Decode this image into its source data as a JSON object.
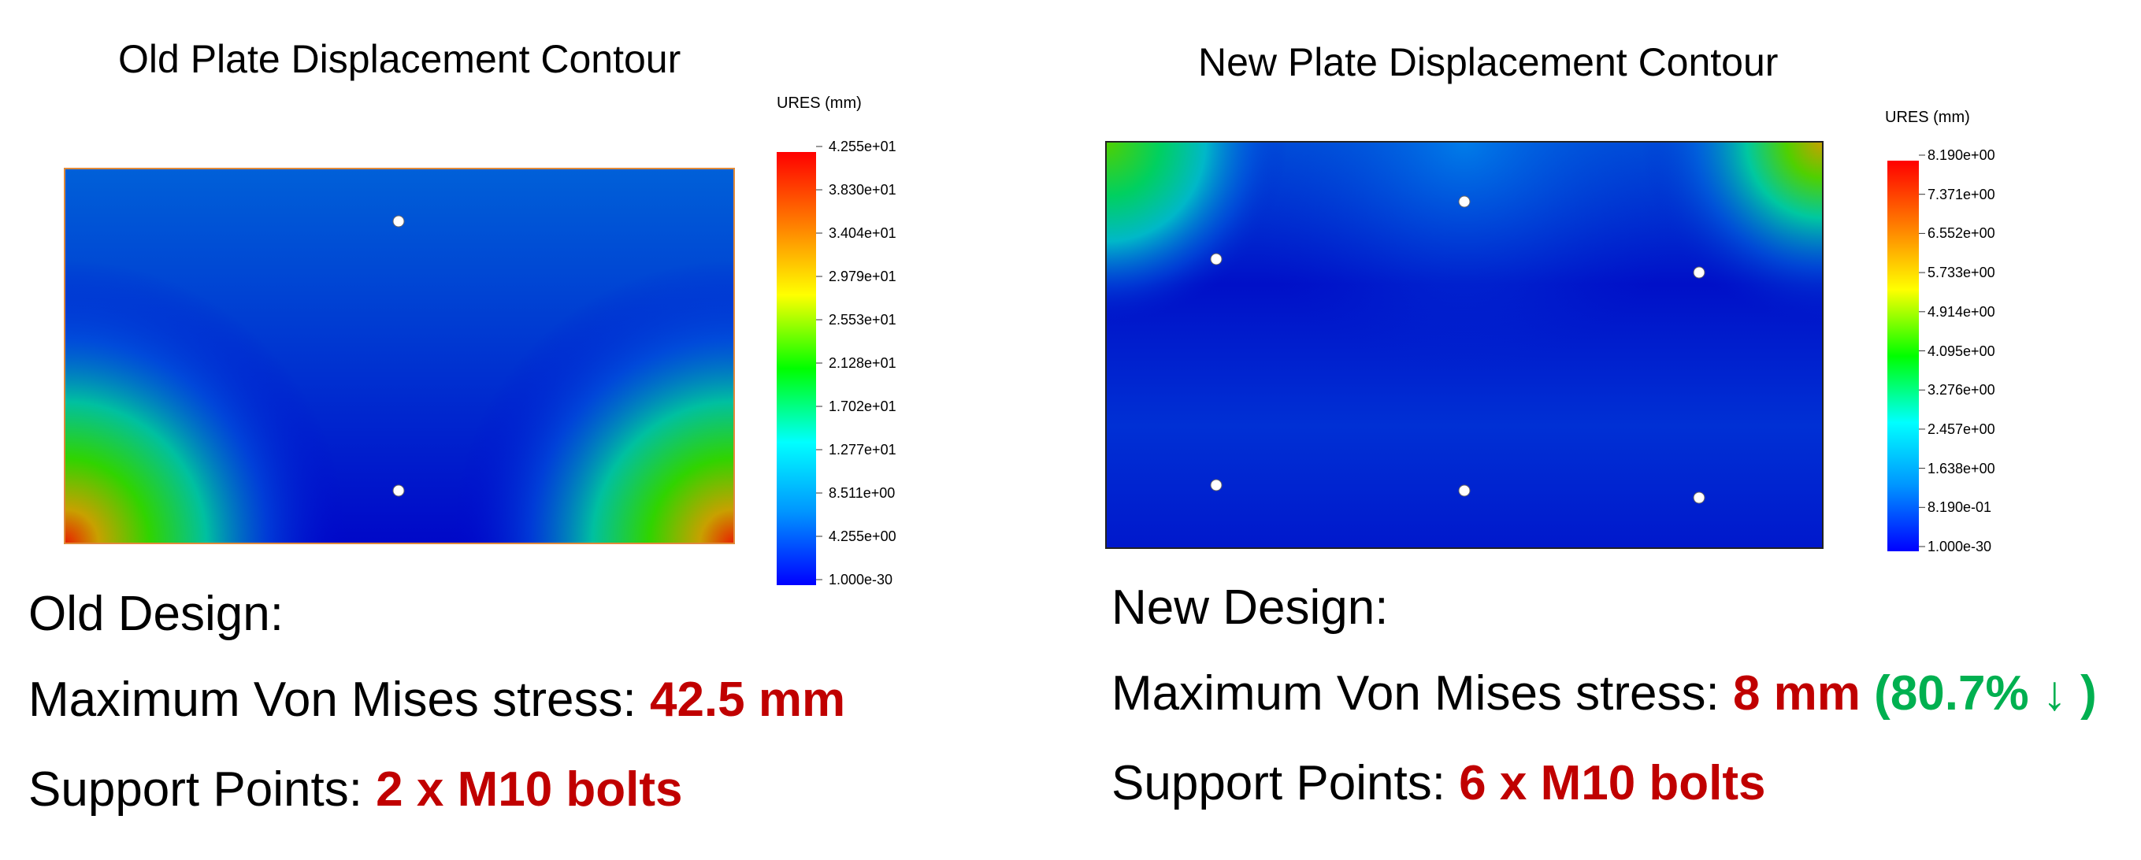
{
  "colors": {
    "red_text": "#c00000",
    "green_text": "#00b050",
    "colormap": [
      "#0000ff",
      "#0096ff",
      "#00ffff",
      "#00ff00",
      "#ffff00",
      "#ff8000",
      "#ff0000"
    ]
  },
  "old": {
    "title": "Old Plate Displacement Contour",
    "legend_title": "URES (mm)",
    "ticks": [
      "4.255e+01",
      "3.830e+01",
      "3.404e+01",
      "2.979e+01",
      "2.553e+01",
      "2.128e+01",
      "1.702e+01",
      "1.277e+01",
      "8.511e+00",
      "4.255e+00",
      "1.000e-30"
    ],
    "design_label": "Old Design:",
    "stress_label": "Maximum Von Mises stress: ",
    "stress_value": "42.5 mm",
    "support_label": "Support Points: ",
    "support_value": "2 x M10 bolts",
    "bolt_count": 2
  },
  "new": {
    "title": "New Plate Displacement Contour",
    "legend_title": "URES (mm)",
    "ticks": [
      "8.190e+00",
      "7.371e+00",
      "6.552e+00",
      "5.733e+00",
      "4.914e+00",
      "4.095e+00",
      "3.276e+00",
      "2.457e+00",
      "1.638e+00",
      "8.190e-01",
      "1.000e-30"
    ],
    "design_label": "New Design:",
    "stress_label": "Maximum Von Mises stress: ",
    "stress_value": "8 mm",
    "reduction": "(80.7% ↓ )",
    "support_label": "Support Points: ",
    "support_value": "6 x M10 bolts",
    "bolt_count": 6
  }
}
